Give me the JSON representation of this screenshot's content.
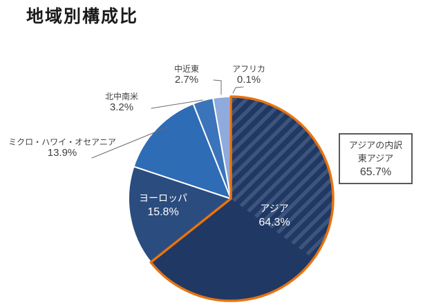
{
  "title": "地域別構成比",
  "chart_data": {
    "type": "pie",
    "title": "地域別構成比",
    "unit": "%",
    "slices": [
      {
        "key": "asia",
        "label": "アジア",
        "value": 64.3,
        "value_label": "64.3%",
        "color": "#1F3864",
        "hatched": true
      },
      {
        "key": "europe",
        "label": "ヨーロッパ",
        "value": 15.8,
        "value_label": "15.8%",
        "color": "#2B4C7E"
      },
      {
        "key": "micronesia-hawaii-oceania",
        "label": "ミクロ・ハワイ・オセアニア",
        "value": 13.9,
        "value_label": "13.9%",
        "color": "#2E6CB5"
      },
      {
        "key": "north-central-south-america",
        "label": "北中南米",
        "value": 3.2,
        "value_label": "3.2%",
        "color": "#3B74BA"
      },
      {
        "key": "middle-east",
        "label": "中近東",
        "value": 2.7,
        "value_label": "2.7%",
        "color": "#8FAADC"
      },
      {
        "key": "africa",
        "label": "アフリカ",
        "value": 0.1,
        "value_label": "0.1%",
        "color": "#9DC3E6"
      }
    ],
    "annotation": {
      "line1": "アジアの内訳",
      "line2": "東アジア",
      "value": 65.7,
      "value_label": "65.7%"
    },
    "layout": {
      "start_angle_deg": 0,
      "clockwise": true,
      "legend": "none",
      "hatch_sweep_deg": 126,
      "hatch_stripe_color": "#3D547C",
      "asia_outline_color": "#E8730F",
      "gap_color": "#FFFFFF",
      "leader_line_color": "#6B6B6B",
      "label_color": "#404040"
    }
  }
}
